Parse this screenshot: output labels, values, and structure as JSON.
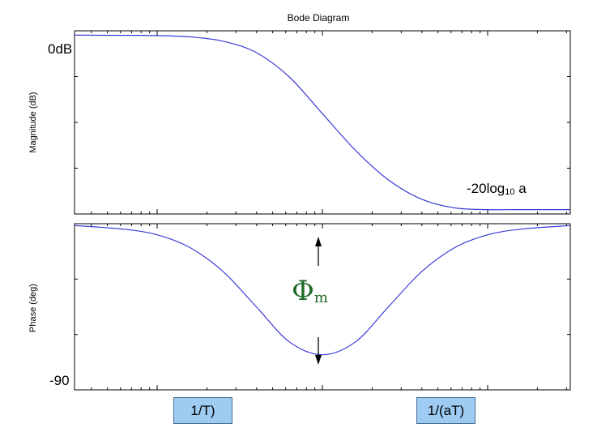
{
  "chart_data": [
    {
      "type": "line",
      "title": "Bode Diagram",
      "ylabel": "Magnitude (dB)",
      "xscale": "log",
      "x_decades": [
        -1.5,
        1.5
      ],
      "ylim": [
        -20.5,
        0.5
      ],
      "series": [
        {
          "x": [
            -1.5,
            -1.2,
            -1.0,
            -0.8,
            -0.6,
            -0.4,
            -0.2,
            0.0,
            0.2,
            0.4,
            0.6,
            0.8,
            1.0,
            1.2,
            1.5
          ],
          "values": [
            0.0,
            -0.02,
            -0.05,
            -0.2,
            -0.7,
            -2.0,
            -4.8,
            -9.0,
            -13.2,
            -16.6,
            -18.8,
            -19.8,
            -20.0,
            -20.0,
            -20.0
          ]
        }
      ],
      "annotations": [
        "0dB",
        "-20log",
        "10",
        " a"
      ]
    },
    {
      "type": "line",
      "ylabel": "Phase (deg)",
      "xscale": "log",
      "x_decades": [
        -1.5,
        1.5
      ],
      "ylim": [
        -90,
        0
      ],
      "series": [
        {
          "x": [
            -1.5,
            -1.2,
            -1.0,
            -0.8,
            -0.6,
            -0.4,
            -0.2,
            0.0,
            0.2,
            0.4,
            0.6,
            0.8,
            1.0,
            1.2,
            1.5
          ],
          "values": [
            -1,
            -3,
            -6,
            -13,
            -26,
            -45,
            -64,
            -71,
            -64,
            -45,
            -26,
            -13,
            -6,
            -3,
            -1
          ]
        }
      ],
      "annotations": [
        "-90",
        "Φ",
        "m"
      ]
    }
  ],
  "boxes": {
    "one_over_T": "1/T)",
    "one_over_aT": "1/(aT)"
  },
  "colors": {
    "curve": "#3b3bd6",
    "phi": "#1f6b2a",
    "box_fill": "#9ecbf2"
  }
}
